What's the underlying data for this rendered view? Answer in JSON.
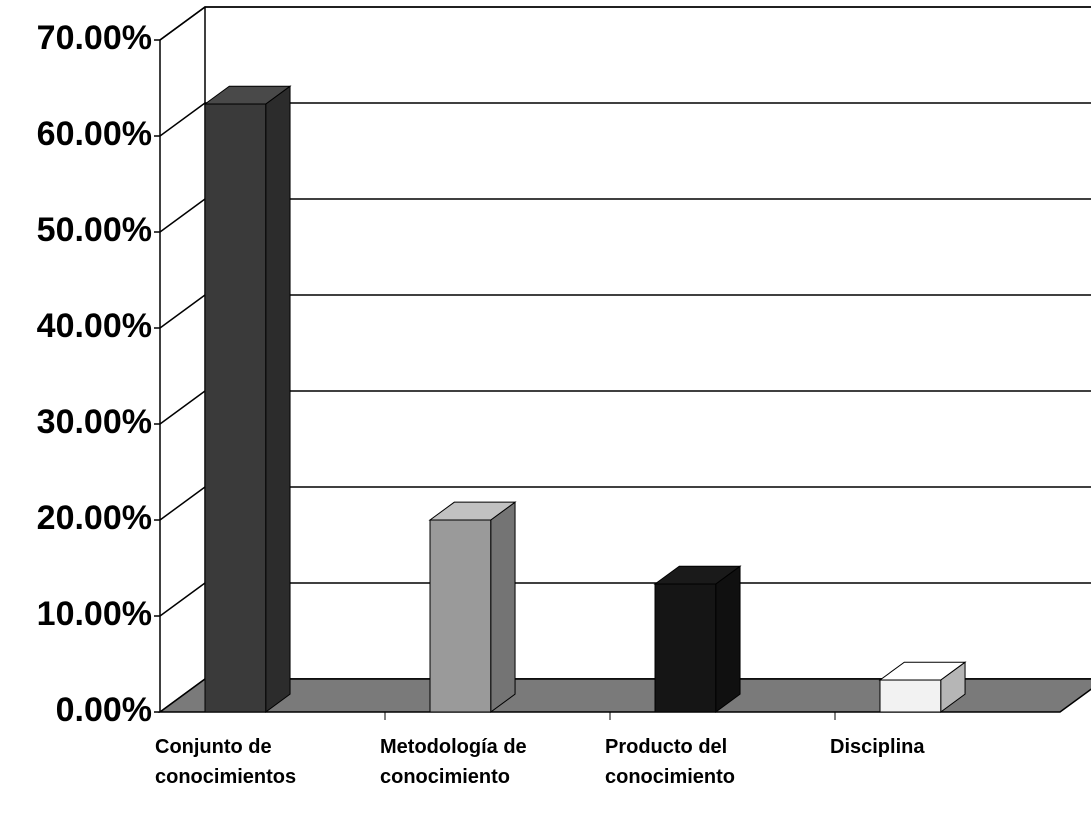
{
  "chart_data": {
    "type": "bar3d",
    "categories": [
      "Conjunto de conocimientos",
      "Metodología de conocimiento",
      "Producto del conocimiento",
      "Disciplina"
    ],
    "values": [
      63.33,
      20,
      13.33,
      3.33
    ],
    "colors": [
      "#3a3a3a",
      "#9a9a9a",
      "#151515",
      "#f2f2f2"
    ],
    "ylim": [
      0,
      70
    ],
    "yticks": [
      {
        "value": 0,
        "label": "0.00%"
      },
      {
        "value": 10,
        "label": "10.00%"
      },
      {
        "value": 20,
        "label": "20.00%"
      },
      {
        "value": 30,
        "label": "30.00%"
      },
      {
        "value": 40,
        "label": "40.00%"
      },
      {
        "value": 50,
        "label": "50.00%"
      },
      {
        "value": 60,
        "label": "60.00%"
      },
      {
        "value": 70,
        "label": "70.00%"
      }
    ],
    "grid": true
  }
}
